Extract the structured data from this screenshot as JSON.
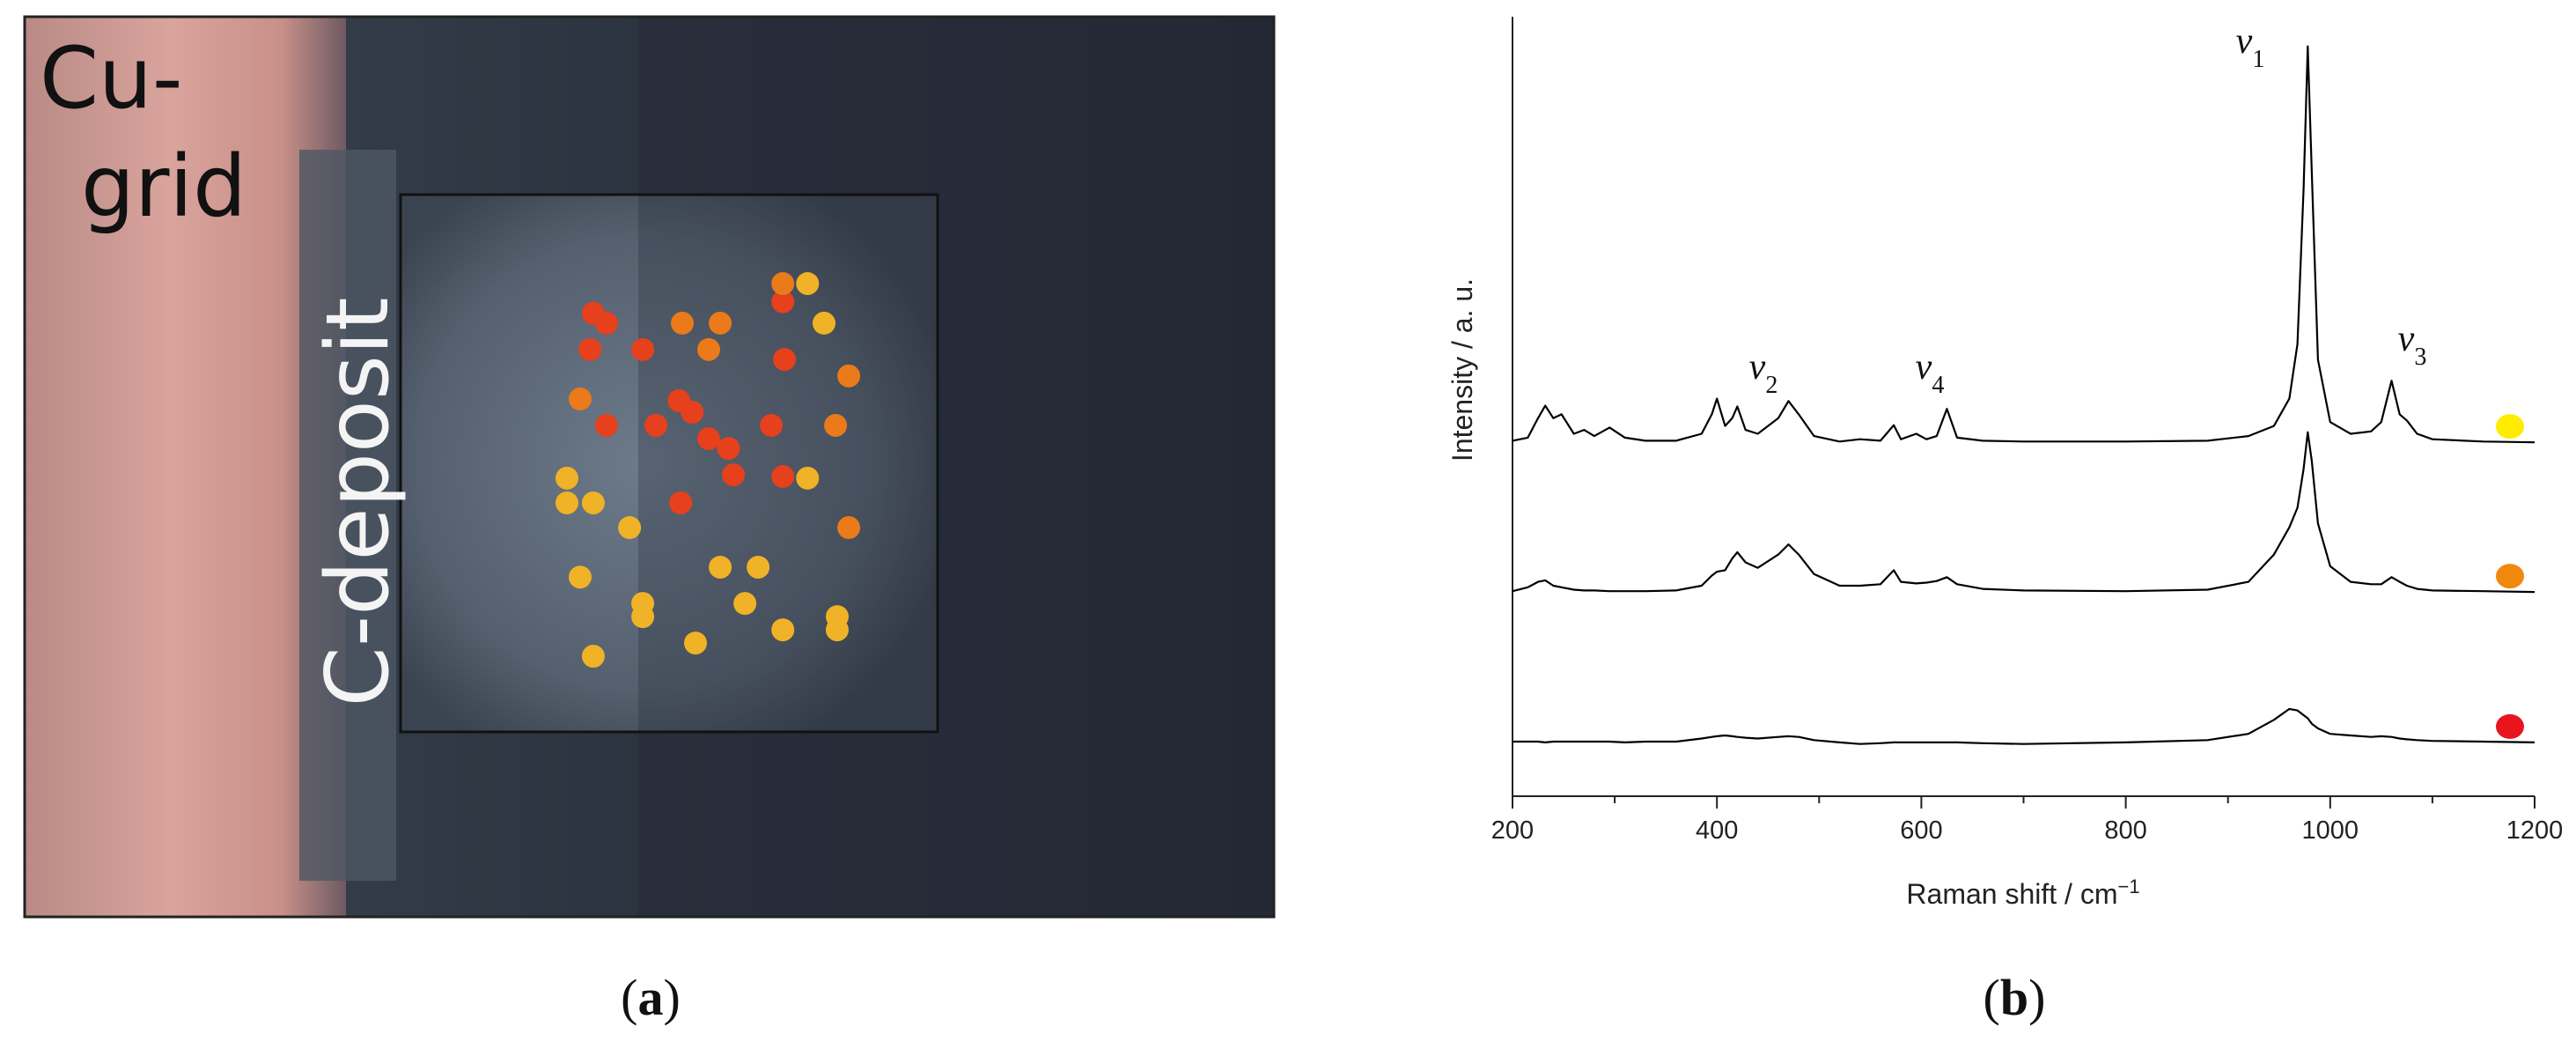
{
  "panel_a": {
    "caption_open": "(",
    "caption_letter": "a",
    "caption_close": ")",
    "grid_label_line1": "Cu-",
    "grid_label_line2": "grid",
    "deposit_label": "C-deposit"
  },
  "panel_b": {
    "caption_open": "(",
    "caption_letter": "b",
    "caption_close": ")"
  },
  "chart_data": {
    "type": "line",
    "x_label": "Raman shift / cm",
    "x_label_sup": "−1",
    "y_label": "Intensity / a. u.",
    "annotations": [
      {
        "symbol": "ν",
        "sub": "1"
      },
      {
        "symbol": "ν",
        "sub": "2"
      },
      {
        "symbol": "ν",
        "sub": "3"
      },
      {
        "symbol": "ν",
        "sub": "4"
      }
    ],
    "xlim": [
      200,
      1200
    ],
    "xticks": [
      200,
      400,
      600,
      800,
      1000,
      1200
    ],
    "ylim": [
      0,
      100
    ],
    "line_color": "#000000",
    "x": [
      200,
      215,
      225,
      232,
      240,
      248,
      260,
      270,
      280,
      295,
      310,
      330,
      360,
      385,
      395,
      400,
      408,
      415,
      420,
      428,
      440,
      460,
      470,
      480,
      495,
      520,
      540,
      560,
      573,
      580,
      595,
      605,
      615,
      625,
      635,
      660,
      700,
      800,
      880,
      920,
      945,
      960,
      968,
      974,
      978,
      982,
      988,
      1000,
      1020,
      1040,
      1050,
      1060,
      1068,
      1075,
      1085,
      1100,
      1150,
      1200
    ],
    "series": [
      {
        "color": "#ffec00",
        "values": [
          45.6,
          46,
          48.5,
          50.1,
          48.5,
          49,
          46.5,
          47,
          46.2,
          47.3,
          46,
          45.6,
          45.6,
          46.5,
          49,
          51,
          47.5,
          48.5,
          50,
          47,
          46.5,
          48.5,
          50.7,
          49,
          46.2,
          45.5,
          45.8,
          45.6,
          47.6,
          45.8,
          46.5,
          45.8,
          46.2,
          49.7,
          46,
          45.6,
          45.5,
          45.5,
          45.6,
          46.2,
          47.5,
          51,
          58,
          78,
          96.2,
          80,
          56,
          48,
          46.5,
          46.8,
          48,
          53.3,
          49,
          48.2,
          46.5,
          45.8,
          45.5,
          45.4
        ]
      },
      {
        "color": "#f0880e",
        "values": [
          26.3,
          26.8,
          27.5,
          27.7,
          27,
          26.8,
          26.5,
          26.4,
          26.4,
          26.3,
          26.3,
          26.3,
          26.4,
          27,
          28.3,
          28.8,
          29,
          30.5,
          31.3,
          30,
          29.3,
          31,
          32.3,
          31,
          28.5,
          27,
          27,
          27.2,
          29,
          27.5,
          27.3,
          27.4,
          27.6,
          28.1,
          27.2,
          26.6,
          26.4,
          26.3,
          26.5,
          27.5,
          31,
          34.5,
          37,
          42,
          46.7,
          43,
          35,
          29.5,
          27.5,
          27.2,
          27.2,
          28.1,
          27.5,
          27,
          26.6,
          26.4,
          26.3,
          26.2
        ]
      },
      {
        "color": "#e8141e",
        "values": [
          7,
          7,
          7,
          6.9,
          7,
          7,
          7,
          7,
          7,
          7,
          6.9,
          7,
          7,
          7.4,
          7.6,
          7.7,
          7.8,
          7.7,
          7.6,
          7.5,
          7.4,
          7.6,
          7.7,
          7.6,
          7.2,
          6.9,
          6.7,
          6.8,
          6.9,
          6.9,
          6.9,
          6.9,
          6.9,
          6.9,
          6.9,
          6.8,
          6.7,
          6.9,
          7.2,
          8,
          9.8,
          11.2,
          11,
          10.4,
          10,
          9.3,
          8.7,
          8,
          7.8,
          7.6,
          7.7,
          7.6,
          7.4,
          7.3,
          7.2,
          7.1,
          7,
          6.9
        ]
      }
    ]
  }
}
